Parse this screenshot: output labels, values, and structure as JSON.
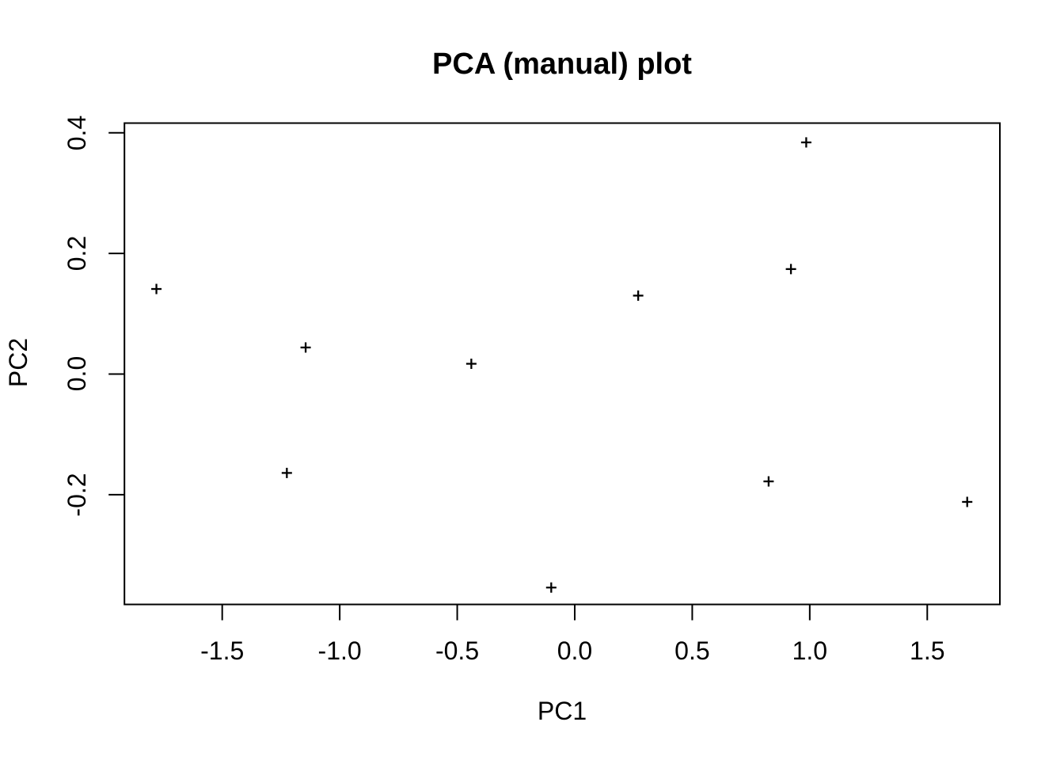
{
  "page": {
    "background": "#ffffff",
    "foreground": "#000000"
  },
  "chart_data": {
    "type": "scatter",
    "title": "PCA (manual) plot",
    "xlabel": "PC1",
    "ylabel": "PC2",
    "marker": "plus",
    "marker_color": "#000000",
    "grid": false,
    "legend": null,
    "xlim": [
      -1.916,
      1.809
    ],
    "ylim": [
      -0.382,
      0.416
    ],
    "x_ticks": [
      -1.5,
      -1.0,
      -0.5,
      0.0,
      0.5,
      1.0,
      1.5
    ],
    "x_tick_labels": [
      "-1.5",
      "-1.0",
      "-0.5",
      "0.0",
      "0.5",
      "1.0",
      "1.5"
    ],
    "y_ticks": [
      -0.2,
      0.0,
      0.2,
      0.4
    ],
    "y_tick_labels": [
      "-0.2",
      "0.0",
      "0.2",
      "0.4"
    ],
    "points": [
      {
        "x": -1.78,
        "y": 0.141
      },
      {
        "x": -1.225,
        "y": -0.164
      },
      {
        "x": -1.145,
        "y": 0.044
      },
      {
        "x": -0.44,
        "y": 0.017
      },
      {
        "x": -0.1,
        "y": -0.354
      },
      {
        "x": 0.27,
        "y": 0.13
      },
      {
        "x": 0.825,
        "y": -0.178
      },
      {
        "x": 0.92,
        "y": 0.174
      },
      {
        "x": 0.985,
        "y": 0.384
      },
      {
        "x": 1.67,
        "y": -0.212
      }
    ]
  }
}
